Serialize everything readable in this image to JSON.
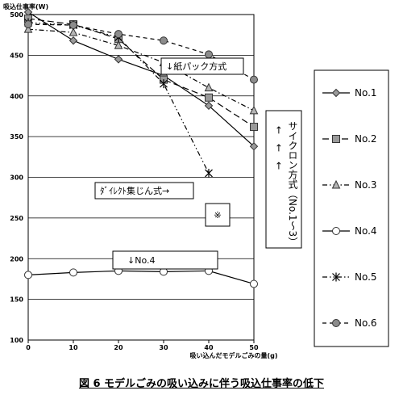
{
  "caption": "図 6 モデルごみの吸い込みに伴う吸込仕事率の低下",
  "chart_data": {
    "type": "line",
    "ylabel": "吸込仕事率(W)",
    "xlabel": "吸い込んだモデルごみの量(g)",
    "x": [
      0,
      10,
      20,
      30,
      40,
      50
    ],
    "xticks": [
      "0",
      "10",
      "20",
      "30",
      "40",
      "50"
    ],
    "yticks": [
      "100",
      "150",
      "200",
      "250",
      "300",
      "350",
      "400",
      "450",
      "500"
    ],
    "ylim": [
      100,
      500
    ],
    "xlim": [
      0,
      50
    ],
    "grid": "horizontal",
    "legend_position": "right",
    "series": [
      {
        "name": "No.1",
        "marker": "diamond",
        "dash": "solid",
        "values": [
          503,
          468,
          445,
          425,
          388,
          338
        ]
      },
      {
        "name": "No.2",
        "marker": "square",
        "dash": "long-dash",
        "values": [
          495,
          488,
          470,
          420,
          398,
          362
        ]
      },
      {
        "name": "No.3",
        "marker": "triangle",
        "dash": "dash-dot",
        "values": [
          482,
          478,
          462,
          441,
          410,
          382
        ]
      },
      {
        "name": "No.4",
        "marker": "circle-open",
        "dash": "solid",
        "values": [
          180,
          183,
          185,
          184,
          185,
          169
        ]
      },
      {
        "name": "No.5",
        "marker": "star",
        "dash": "dash-dot-dot",
        "values": [
          490,
          487,
          472,
          415,
          305,
          null
        ]
      },
      {
        "name": "No.6",
        "marker": "circle-filled",
        "dash": "dash",
        "values": [
          488,
          487,
          476,
          468,
          451,
          420
        ]
      }
    ],
    "annotations": {
      "paper_pack": "↓紙パック方式",
      "cyclone": "サイクロン方式（No.1〜3）",
      "cyclone_arrows": "←　←　←",
      "direct": "ﾀﾞｲﾚｸﾄ集じん式→",
      "no4": "↓No.4",
      "note": "※"
    }
  }
}
